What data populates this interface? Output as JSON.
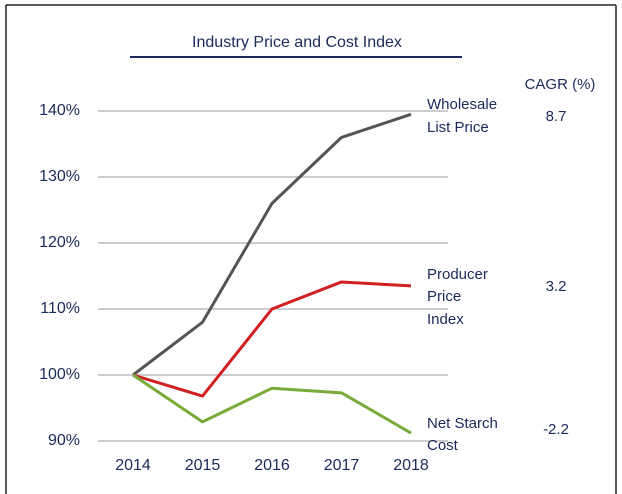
{
  "chart_data": {
    "type": "line",
    "title": "Industry Price and Cost Index",
    "categories": [
      "2014",
      "2015",
      "2016",
      "2017",
      "2018"
    ],
    "ylim": [
      90,
      140
    ],
    "yticks": [
      {
        "value": 90,
        "label": "90%"
      },
      {
        "value": 100,
        "label": "100%"
      },
      {
        "value": 110,
        "label": "110%"
      },
      {
        "value": 120,
        "label": "120%"
      },
      {
        "value": 130,
        "label": "130%"
      },
      {
        "value": 140,
        "label": "140%"
      }
    ],
    "grid": true,
    "cagr_header": "CAGR (%)",
    "series": [
      {
        "name": [
          "Wholesale",
          "List Price"
        ],
        "color": "#555555",
        "values": [
          100,
          108,
          126,
          136,
          139.5
        ],
        "cagr": 8.7
      },
      {
        "name": [
          "Producer",
          "Price",
          "Index"
        ],
        "color": "#d02020",
        "values": [
          100,
          96.8,
          110,
          114.1,
          113.5
        ],
        "cagr": 3.2
      },
      {
        "name": [
          "Net Starch",
          "Cost"
        ],
        "color": "#7aab3a",
        "values": [
          100,
          92.9,
          98,
          97.3,
          91.2
        ],
        "cagr": -2.2
      }
    ]
  }
}
